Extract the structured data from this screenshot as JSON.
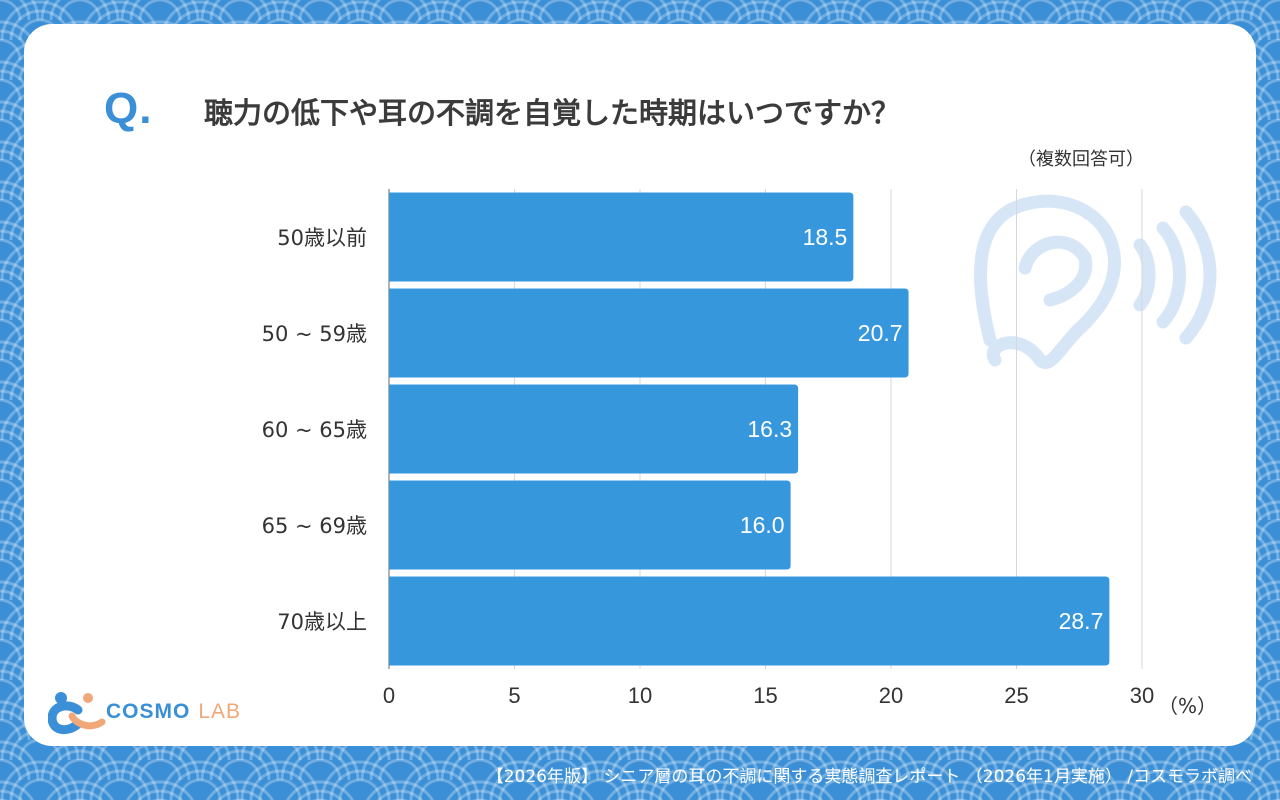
{
  "header": {
    "q_mark": "Q.",
    "title": "聴力の低下や耳の不調を自覚した時期はいつですか？",
    "note": "（複数回答可）"
  },
  "logo": {
    "name": "COSMO",
    "suffix": "LAB",
    "accent_color": "#f0a878",
    "brand_color": "#3a8fd6"
  },
  "footer": {
    "source": "【2026年版】 シニア層の耳の不調に関する実態調査レポート （2026年1月実施） /コスモラボ調べ"
  },
  "decoration": {
    "icon": "ear-sound-icon"
  },
  "chart_data": {
    "type": "bar",
    "orientation": "horizontal",
    "categories": [
      "50歳以前",
      "50 ~ 59歳",
      "60 ~ 65歳",
      "65 ~ 69歳",
      "70歳以上"
    ],
    "values": [
      18.5,
      20.7,
      16.3,
      16.0,
      28.7
    ],
    "value_labels": [
      "18.5",
      "20.7",
      "16.3",
      "16.0",
      "28.7"
    ],
    "xticks": [
      "0",
      "5",
      "10",
      "15",
      "20",
      "25",
      "30"
    ],
    "xlim": [
      0,
      30
    ],
    "unit": "（%）",
    "bar_color": "#3797dd",
    "grid": true
  }
}
